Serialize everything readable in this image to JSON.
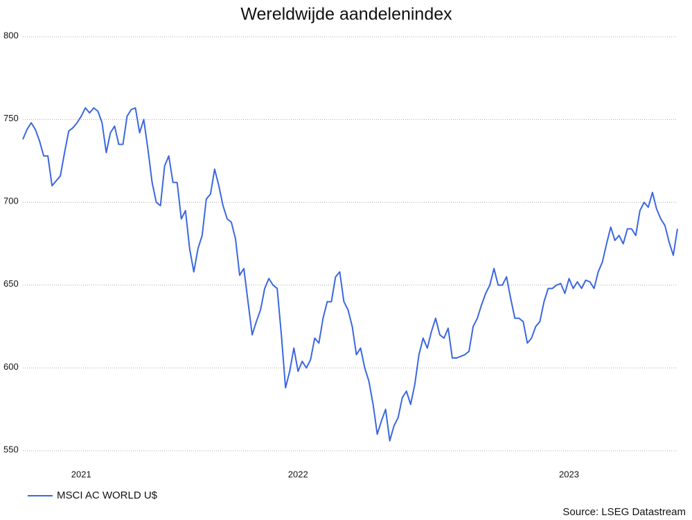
{
  "chart_data": {
    "type": "line",
    "title": "Wereldwijde aandelenindex",
    "source": "Source: LSEG Datastream",
    "categories": [
      null,
      null,
      null,
      null,
      null,
      null,
      null,
      null,
      null,
      null,
      null,
      null,
      null,
      null,
      "2021",
      null,
      null,
      null,
      null,
      null,
      null,
      null,
      null,
      null,
      null,
      null,
      null,
      null,
      null,
      null,
      null,
      null,
      null,
      null,
      null,
      null,
      null,
      null,
      null,
      null,
      null,
      null,
      null,
      null,
      null,
      null,
      null,
      null,
      null,
      null,
      null,
      null,
      null,
      null,
      null,
      null,
      null,
      null,
      null,
      null,
      null,
      null,
      null,
      null,
      null,
      null,
      "2022",
      null,
      null,
      null,
      null,
      null,
      null,
      null,
      null,
      null,
      null,
      null,
      null,
      null,
      null,
      null,
      null,
      null,
      null,
      null,
      null,
      null,
      null,
      null,
      null,
      null,
      null,
      null,
      null,
      null,
      null,
      null,
      null,
      null,
      null,
      null,
      null,
      null,
      null,
      null,
      null,
      null,
      null,
      null,
      null,
      null,
      null,
      null,
      null,
      null,
      null,
      null,
      null,
      null,
      null,
      null,
      null,
      null,
      null,
      null,
      null,
      null,
      null,
      null,
      null,
      "2023",
      null,
      null,
      null,
      null,
      null,
      null,
      null,
      null,
      null,
      null,
      null,
      null,
      null,
      null,
      null,
      null,
      null,
      null,
      null,
      null,
      null,
      null,
      null,
      null,
      null,
      null
    ],
    "series": [
      {
        "name": "MSCI AC WORLD U$",
        "color": "#3a66e0",
        "values": [
          738,
          744,
          748,
          744,
          737,
          728,
          728,
          710,
          713,
          716,
          730,
          743,
          745,
          748,
          752,
          757,
          754,
          757,
          755,
          748,
          730,
          742,
          746,
          735,
          735,
          752,
          756,
          757,
          742,
          750,
          732,
          712,
          700,
          698,
          722,
          728,
          712,
          712,
          690,
          695,
          672,
          658,
          672,
          680,
          702,
          705,
          720,
          710,
          698,
          690,
          688,
          678,
          656,
          660,
          640,
          620,
          628,
          635,
          648,
          654,
          650,
          648,
          620,
          588,
          598,
          612,
          598,
          604,
          600,
          605,
          618,
          615,
          630,
          640,
          640,
          655,
          658,
          640,
          635,
          625,
          608,
          612,
          600,
          592,
          578,
          560,
          568,
          575,
          556,
          565,
          570,
          582,
          586,
          578,
          590,
          608,
          618,
          612,
          622,
          630,
          620,
          618,
          624,
          606,
          606,
          607,
          608,
          610,
          625,
          630,
          638,
          645,
          650,
          660,
          650,
          650,
          655,
          642,
          630,
          630,
          628,
          615,
          618,
          625,
          628,
          640,
          648,
          648,
          650,
          651,
          645,
          654,
          648,
          652,
          648,
          653,
          652,
          648,
          658,
          664,
          675,
          685,
          677,
          680,
          675,
          684,
          684,
          680,
          695,
          700,
          697,
          706,
          696,
          690,
          686,
          676,
          668,
          684
        ]
      }
    ],
    "ylim": [
      550,
      800
    ],
    "yticks": [
      550,
      600,
      650,
      700,
      750,
      800
    ],
    "grid": true,
    "legend": "bottom-left"
  }
}
